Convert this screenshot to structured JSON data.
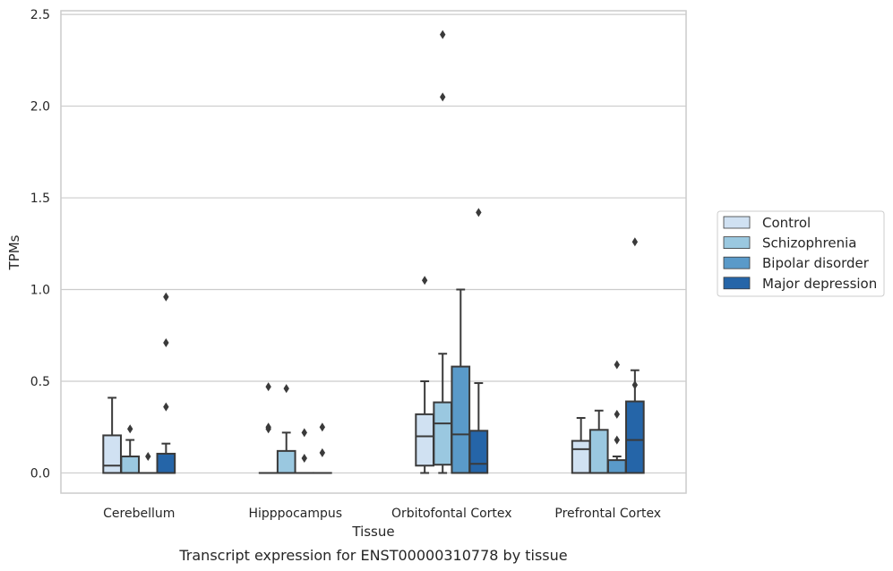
{
  "caption": "Transcript expression for ENST00000310778 by tissue",
  "chart_data": {
    "type": "box",
    "xlabel": "Tissue",
    "ylabel": "TPMs",
    "ylim": [
      -0.11,
      2.52
    ],
    "yticks": [
      "0.0",
      "0.5",
      "1.0",
      "1.5",
      "2.0",
      "2.5"
    ],
    "ytick_values": [
      0,
      0.5,
      1.0,
      1.5,
      2.0,
      2.5
    ],
    "grid": true,
    "legend_position": "right",
    "categories": [
      "Cerebellum",
      "Hipppocampus",
      "Orbitofontal Cortex",
      "Prefrontal Cortex"
    ],
    "series": [
      {
        "name": "Control",
        "color": "#d0e1f2",
        "boxes": [
          {
            "whislo": 0,
            "q1": 0,
            "med": 0.04,
            "q3": 0.205,
            "whishi": 0.41,
            "fliers": []
          },
          {
            "whislo": 0,
            "q1": 0,
            "med": 0,
            "q3": 0,
            "whishi": 0,
            "fliers": [
              0.47,
              0.25,
              0.24
            ]
          },
          {
            "whislo": 0,
            "q1": 0.04,
            "med": 0.2,
            "q3": 0.32,
            "whishi": 0.5,
            "fliers": [
              1.05
            ]
          },
          {
            "whislo": 0,
            "q1": 0,
            "med": 0.13,
            "q3": 0.175,
            "whishi": 0.3,
            "fliers": []
          }
        ]
      },
      {
        "name": "Schizophrenia",
        "color": "#9ac8e0",
        "boxes": [
          {
            "whislo": 0,
            "q1": 0,
            "med": 0,
            "q3": 0.09,
            "whishi": 0.18,
            "fliers": [
              0.24
            ]
          },
          {
            "whislo": 0,
            "q1": 0,
            "med": 0,
            "q3": 0.12,
            "whishi": 0.22,
            "fliers": [
              0.46
            ]
          },
          {
            "whislo": 0,
            "q1": 0.045,
            "med": 0.27,
            "q3": 0.385,
            "whishi": 0.65,
            "fliers": [
              2.39,
              2.05
            ]
          },
          {
            "whislo": 0,
            "q1": 0,
            "med": 0,
            "q3": 0.235,
            "whishi": 0.34,
            "fliers": []
          }
        ]
      },
      {
        "name": "Bipolar disorder",
        "color": "#5a9ac9",
        "boxes": [
          {
            "whislo": 0,
            "q1": 0,
            "med": 0,
            "q3": 0,
            "whishi": 0,
            "fliers": [
              0.09
            ]
          },
          {
            "whislo": 0,
            "q1": 0,
            "med": 0,
            "q3": 0,
            "whishi": 0,
            "fliers": [
              0.22,
              0.08
            ]
          },
          {
            "whislo": 0,
            "q1": 0,
            "med": 0.21,
            "q3": 0.58,
            "whishi": 1.0,
            "fliers": []
          },
          {
            "whislo": 0,
            "q1": 0,
            "med": 0,
            "q3": 0.07,
            "whishi": 0.09,
            "fliers": [
              0.59,
              0.32,
              0.18
            ]
          }
        ]
      },
      {
        "name": "Major depression",
        "color": "#2565a8",
        "boxes": [
          {
            "whislo": 0,
            "q1": 0,
            "med": 0,
            "q3": 0.105,
            "whishi": 0.16,
            "fliers": [
              0.96,
              0.71,
              0.36
            ]
          },
          {
            "whislo": 0,
            "q1": 0,
            "med": 0,
            "q3": 0,
            "whishi": 0,
            "fliers": [
              0.25,
              0.11
            ]
          },
          {
            "whislo": 0,
            "q1": 0,
            "med": 0.05,
            "q3": 0.23,
            "whishi": 0.49,
            "fliers": [
              1.42
            ]
          },
          {
            "whislo": 0,
            "q1": 0,
            "med": 0.18,
            "q3": 0.39,
            "whishi": 0.56,
            "fliers": [
              0.48,
              1.26
            ]
          }
        ]
      }
    ]
  },
  "colors": {
    "grid": "#cccccc",
    "frame": "#cccccc",
    "box_edge": "#3a3a3a",
    "text": "#262626"
  }
}
